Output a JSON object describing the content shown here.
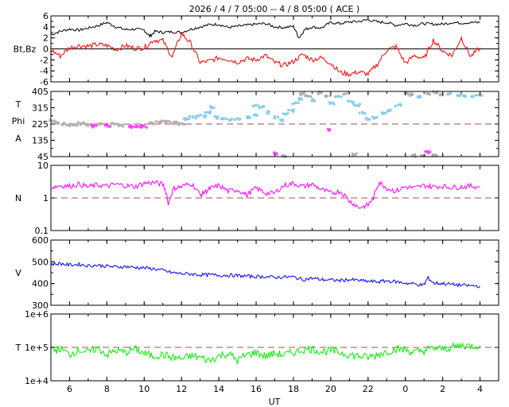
{
  "title": "2026 /  4 /  7   05:00 -- 4 /  8   05:00 ( ACE )",
  "x_axis": {
    "label": "UT",
    "ticks": [
      "6",
      "8",
      "10",
      "12",
      "14",
      "16",
      "18",
      "20",
      "22",
      "0",
      "2",
      "4"
    ],
    "tick_hours": [
      6,
      8,
      10,
      12,
      14,
      16,
      18,
      20,
      22,
      24,
      26,
      28
    ],
    "range_hours": [
      5,
      29
    ]
  },
  "colors": {
    "bt": "#000000",
    "bz": "#ff0000",
    "phi_toward": "#87ceeb",
    "phi_away": "#ff40ff",
    "phi_other": "#b0b0b0",
    "n": "#ff00ff",
    "v": "#0000ff",
    "temp": "#00ee00",
    "reference": "#a05050"
  },
  "chart_data": [
    {
      "type": "line",
      "panel": "imf",
      "ylabel": "Bt,Bz",
      "y_ticks": [
        "6",
        "4",
        "2",
        "0",
        "-2",
        "-4",
        "-6"
      ],
      "ylim": [
        -6,
        6
      ],
      "reference_line": 0,
      "series": [
        {
          "key": "Bt",
          "x": [
            5,
            5.5,
            6,
            6.5,
            7,
            7.5,
            8,
            8.5,
            9,
            9.5,
            10,
            10.3,
            10.6,
            11,
            11.5,
            12,
            12.5,
            13,
            13.5,
            14,
            14.5,
            15,
            15.5,
            16,
            16.5,
            17,
            17.5,
            18,
            18.3,
            18.6,
            19,
            19.5,
            20,
            20.5,
            21,
            21.5,
            22,
            22.5,
            23,
            23.5,
            24,
            24.5,
            25,
            25.5,
            26,
            26.5,
            27,
            27.5,
            28
          ],
          "y": [
            2.6,
            3.2,
            3.6,
            3.4,
            3.8,
            4.2,
            4.8,
            4.0,
            3.5,
            3.6,
            3.4,
            2.3,
            3.2,
            3.0,
            3.1,
            3.0,
            3.6,
            4.0,
            4.4,
            4.5,
            3.9,
            4.1,
            4.3,
            4.5,
            4.6,
            4.0,
            3.9,
            4.1,
            2.0,
            3.5,
            4.0,
            3.8,
            4.8,
            4.6,
            4.9,
            5.0,
            5.3,
            4.9,
            4.8,
            4.3,
            4.6,
            4.3,
            4.6,
            4.5,
            4.5,
            4.8,
            4.7,
            4.8,
            4.8
          ]
        },
        {
          "key": "Bz",
          "x": [
            5,
            5.5,
            6,
            6.5,
            7,
            7.5,
            8,
            8.5,
            9,
            9.5,
            10,
            10.5,
            11,
            11.5,
            12,
            12.5,
            13,
            13.5,
            14,
            14.5,
            15,
            15.5,
            16,
            16.5,
            17,
            17.5,
            18,
            18.5,
            19,
            19.5,
            20,
            20.5,
            21,
            21.5,
            22,
            22.5,
            23,
            23.5,
            24,
            24.5,
            25,
            25.5,
            26,
            26.5,
            27,
            27.5,
            28
          ],
          "y": [
            -0.2,
            -1.3,
            0.2,
            0.6,
            0.5,
            0.8,
            0.6,
            -0.1,
            0.6,
            0.1,
            0.2,
            1.6,
            1.5,
            -1.5,
            2.8,
            1.0,
            -2.5,
            -2.2,
            -1.6,
            -1.9,
            -2.4,
            -1.8,
            -2.0,
            -1.2,
            -2.5,
            -3.0,
            -2.3,
            -1.0,
            -2.0,
            -1.6,
            -2.6,
            -4.3,
            -4.6,
            -4.2,
            -4.6,
            -2.8,
            -0.2,
            0.4,
            -2.6,
            -1.2,
            -1.8,
            1.6,
            -0.4,
            -1.2,
            2.0,
            -1.4,
            0.2
          ]
        }
      ]
    },
    {
      "type": "scatter",
      "panel": "phi",
      "ylabel": "T\nPhi\nA",
      "ylabel_lines": [
        "T",
        "Phi",
        "A"
      ],
      "y_ticks": [
        "405",
        "315",
        "225",
        "135",
        "45"
      ],
      "ylim": [
        45,
        405
      ],
      "reference_line": 225,
      "points": [
        {
          "x": 5.1,
          "y": 240,
          "group": "other"
        },
        {
          "x": 5.4,
          "y": 232,
          "group": "other"
        },
        {
          "x": 5.7,
          "y": 225,
          "group": "other"
        },
        {
          "x": 6.0,
          "y": 219,
          "group": "other"
        },
        {
          "x": 6.3,
          "y": 222,
          "group": "other"
        },
        {
          "x": 6.6,
          "y": 228,
          "group": "other"
        },
        {
          "x": 7.0,
          "y": 220,
          "group": "other"
        },
        {
          "x": 7.3,
          "y": 214,
          "group": "away"
        },
        {
          "x": 7.6,
          "y": 222,
          "group": "other"
        },
        {
          "x": 8.0,
          "y": 218,
          "group": "away"
        },
        {
          "x": 8.4,
          "y": 224,
          "group": "other"
        },
        {
          "x": 8.8,
          "y": 219,
          "group": "other"
        },
        {
          "x": 9.2,
          "y": 212,
          "group": "away"
        },
        {
          "x": 9.6,
          "y": 209,
          "group": "away"
        },
        {
          "x": 10.0,
          "y": 213,
          "group": "away"
        },
        {
          "x": 10.4,
          "y": 228,
          "group": "other"
        },
        {
          "x": 10.8,
          "y": 236,
          "group": "other"
        },
        {
          "x": 11.2,
          "y": 240,
          "group": "other"
        },
        {
          "x": 11.6,
          "y": 232,
          "group": "other"
        },
        {
          "x": 12.0,
          "y": 228,
          "group": "other"
        },
        {
          "x": 12.3,
          "y": 252,
          "group": "toward"
        },
        {
          "x": 12.6,
          "y": 262,
          "group": "toward"
        },
        {
          "x": 12.9,
          "y": 272,
          "group": "toward"
        },
        {
          "x": 13.2,
          "y": 268,
          "group": "toward"
        },
        {
          "x": 13.4,
          "y": 290,
          "group": "toward"
        },
        {
          "x": 13.6,
          "y": 318,
          "group": "toward"
        },
        {
          "x": 13.9,
          "y": 262,
          "group": "toward"
        },
        {
          "x": 14.3,
          "y": 256,
          "group": "toward"
        },
        {
          "x": 14.7,
          "y": 252,
          "group": "toward"
        },
        {
          "x": 15.1,
          "y": 250,
          "group": "toward"
        },
        {
          "x": 15.5,
          "y": 262,
          "group": "toward"
        },
        {
          "x": 15.9,
          "y": 274,
          "group": "toward"
        },
        {
          "x": 16.0,
          "y": 330,
          "group": "toward"
        },
        {
          "x": 16.3,
          "y": 318,
          "group": "toward"
        },
        {
          "x": 16.6,
          "y": 290,
          "group": "toward"
        },
        {
          "x": 17.0,
          "y": 262,
          "group": "toward"
        },
        {
          "x": 17.3,
          "y": 248,
          "group": "toward"
        },
        {
          "x": 17.6,
          "y": 278,
          "group": "toward"
        },
        {
          "x": 17.9,
          "y": 300,
          "group": "toward"
        },
        {
          "x": 18.1,
          "y": 340,
          "group": "toward"
        },
        {
          "x": 18.3,
          "y": 360,
          "group": "toward"
        },
        {
          "x": 18.5,
          "y": 392,
          "group": "other"
        },
        {
          "x": 18.8,
          "y": 378,
          "group": "other"
        },
        {
          "x": 19.1,
          "y": 356,
          "group": "toward"
        },
        {
          "x": 19.5,
          "y": 398,
          "group": "other"
        },
        {
          "x": 19.8,
          "y": 380,
          "group": "other"
        },
        {
          "x": 20.1,
          "y": 340,
          "group": "toward"
        },
        {
          "x": 20.4,
          "y": 380,
          "group": "toward"
        },
        {
          "x": 20.8,
          "y": 392,
          "group": "other"
        },
        {
          "x": 21.1,
          "y": 350,
          "group": "toward"
        },
        {
          "x": 21.4,
          "y": 330,
          "group": "toward"
        },
        {
          "x": 21.7,
          "y": 290,
          "group": "toward"
        },
        {
          "x": 22.0,
          "y": 252,
          "group": "toward"
        },
        {
          "x": 22.4,
          "y": 262,
          "group": "toward"
        },
        {
          "x": 22.8,
          "y": 282,
          "group": "toward"
        },
        {
          "x": 23.2,
          "y": 300,
          "group": "toward"
        },
        {
          "x": 23.6,
          "y": 330,
          "group": "toward"
        },
        {
          "x": 24.0,
          "y": 396,
          "group": "other"
        },
        {
          "x": 24.4,
          "y": 388,
          "group": "other"
        },
        {
          "x": 24.8,
          "y": 376,
          "group": "toward"
        },
        {
          "x": 25.2,
          "y": 394,
          "group": "other"
        },
        {
          "x": 25.6,
          "y": 398,
          "group": "other"
        },
        {
          "x": 26.0,
          "y": 386,
          "group": "other"
        },
        {
          "x": 26.4,
          "y": 392,
          "group": "toward"
        },
        {
          "x": 26.8,
          "y": 384,
          "group": "toward"
        },
        {
          "x": 27.2,
          "y": 382,
          "group": "toward"
        },
        {
          "x": 27.6,
          "y": 378,
          "group": "toward"
        },
        {
          "x": 28.0,
          "y": 385,
          "group": "toward"
        },
        {
          "x": 17.1,
          "y": 62,
          "group": "away"
        },
        {
          "x": 17.4,
          "y": 48,
          "group": "other"
        },
        {
          "x": 19.9,
          "y": 195,
          "group": "away"
        },
        {
          "x": 21.3,
          "y": 55,
          "group": "other"
        },
        {
          "x": 24.5,
          "y": 52,
          "group": "other"
        },
        {
          "x": 25.0,
          "y": 48,
          "group": "other"
        },
        {
          "x": 25.2,
          "y": 70,
          "group": "away"
        },
        {
          "x": 25.5,
          "y": 55,
          "group": "other"
        }
      ]
    },
    {
      "type": "line",
      "panel": "density",
      "ylabel": "N",
      "y_ticks": [
        "10",
        "1",
        "0.1"
      ],
      "y_scale": "log",
      "ylim": [
        0.1,
        10
      ],
      "reference_line": 1,
      "series": [
        {
          "key": "N",
          "x": [
            5,
            5.5,
            6,
            6.5,
            7,
            7.5,
            8,
            8.5,
            9,
            9.5,
            10,
            10.5,
            11,
            11.3,
            11.6,
            12,
            12.5,
            13,
            13.3,
            13.6,
            14,
            14.5,
            15,
            15.5,
            16,
            16.5,
            17,
            17.5,
            18,
            18.5,
            19,
            19.5,
            20,
            20.5,
            21,
            21.5,
            22,
            22.3,
            22.6,
            23,
            23.5,
            24,
            24.5,
            25,
            25.5,
            26,
            26.5,
            27,
            27.5,
            28
          ],
          "y": [
            2.1,
            2.4,
            2.3,
            2.6,
            2.2,
            2.5,
            2.3,
            2.6,
            2.4,
            2.2,
            2.8,
            3.0,
            2.6,
            0.6,
            2.0,
            2.2,
            2.8,
            1.2,
            1.6,
            2.0,
            2.4,
            1.6,
            1.8,
            1.2,
            2.0,
            1.4,
            1.4,
            2.4,
            2.8,
            2.2,
            2.6,
            1.8,
            1.4,
            1.6,
            0.8,
            0.5,
            0.6,
            1.0,
            3.0,
            2.0,
            1.6,
            2.2,
            2.0,
            2.4,
            2.2,
            2.3,
            2.1,
            2.2,
            2.3,
            2.2
          ]
        }
      ]
    },
    {
      "type": "line",
      "panel": "speed",
      "ylabel": "V",
      "y_ticks": [
        "600",
        "500",
        "400",
        "300"
      ],
      "ylim": [
        300,
        600
      ],
      "series": [
        {
          "key": "V",
          "x": [
            5,
            5.5,
            6,
            6.5,
            7,
            7.5,
            8,
            8.5,
            9,
            9.5,
            10,
            10.5,
            11,
            11.5,
            12,
            12.5,
            13,
            13.5,
            14,
            14.5,
            15,
            15.5,
            16,
            16.5,
            17,
            17.5,
            18,
            18.5,
            19,
            19.5,
            20,
            20.5,
            21,
            21.5,
            22,
            22.5,
            23,
            23.5,
            24,
            24.5,
            25,
            25.2,
            25.5,
            26,
            26.5,
            27,
            27.5,
            28
          ],
          "y": [
            488,
            492,
            485,
            488,
            482,
            484,
            480,
            476,
            478,
            474,
            472,
            468,
            460,
            450,
            445,
            444,
            440,
            440,
            438,
            438,
            436,
            434,
            432,
            432,
            428,
            430,
            430,
            418,
            424,
            418,
            416,
            414,
            418,
            414,
            410,
            408,
            412,
            408,
            402,
            398,
            392,
            428,
            402,
            400,
            396,
            392,
            390,
            388
          ]
        }
      ]
    },
    {
      "type": "line",
      "panel": "temperature",
      "ylabel": "T",
      "y_ticks": [
        "1e+6",
        "1e+5",
        "1e+4"
      ],
      "y_scale": "log",
      "ylim": [
        10000,
        1000000
      ],
      "reference_line": 100000,
      "series": [
        {
          "key": "T",
          "x": [
            5,
            5.5,
            6,
            6.5,
            7,
            7.5,
            8,
            8.5,
            9,
            9.5,
            10,
            10.5,
            11,
            11.5,
            12,
            12.5,
            13,
            13.5,
            14,
            14.5,
            15,
            15.5,
            16,
            16.5,
            17,
            17.5,
            18,
            18.5,
            19,
            19.5,
            20,
            20.5,
            21,
            21.5,
            22,
            22.5,
            23,
            23.5,
            24,
            24.5,
            25,
            25.5,
            26,
            26.5,
            27,
            27.5,
            28
          ],
          "y": [
            80000,
            90000,
            60000,
            85000,
            70000,
            95000,
            60000,
            80000,
            70000,
            90000,
            65000,
            55000,
            60000,
            50000,
            45000,
            55000,
            50000,
            40000,
            55000,
            65000,
            40000,
            60000,
            70000,
            55000,
            65000,
            60000,
            70000,
            85000,
            90000,
            75000,
            80000,
            70000,
            60000,
            55000,
            50000,
            60000,
            75000,
            90000,
            85000,
            70000,
            80000,
            95000,
            90000,
            100000,
            115000,
            110000,
            115000
          ]
        }
      ]
    }
  ]
}
